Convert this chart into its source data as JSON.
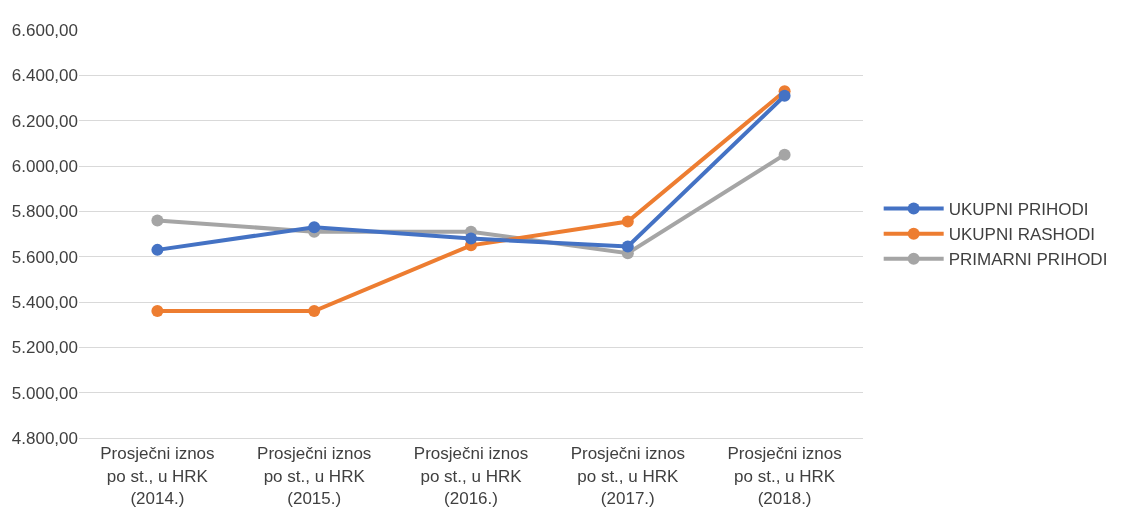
{
  "chart_data": {
    "type": "line",
    "categories": [
      "Prosječni iznos po st., u HRK (2014.)",
      "Prosječni iznos po st., u HRK (2015.)",
      "Prosječni iznos po st., u HRK (2016.)",
      "Prosječni iznos po st., u HRK (2017.)",
      "Prosječni iznos po st., u HRK (2018.)"
    ],
    "series": [
      {
        "name": "UKUPNI PRIHODI",
        "color": "#4472c4",
        "values": [
          5630,
          5730,
          5680,
          5645,
          6310
        ]
      },
      {
        "name": "UKUPNI RASHODI",
        "color": "#ed7d31",
        "values": [
          5360,
          5360,
          5650,
          5755,
          6330
        ]
      },
      {
        "name": "PRIMARNI PRIHODI",
        "color": "#a5a5a5",
        "values": [
          5760,
          5710,
          5710,
          5615,
          6050
        ]
      }
    ],
    "ylim": [
      4800,
      6600
    ],
    "yticks": [
      {
        "value": 4800,
        "label": "4.800,00"
      },
      {
        "value": 5000,
        "label": "5.000,00"
      },
      {
        "value": 5200,
        "label": "5.200,00"
      },
      {
        "value": 5400,
        "label": "5.400,00"
      },
      {
        "value": 5600,
        "label": "5.600,00"
      },
      {
        "value": 5800,
        "label": "5.800,00"
      },
      {
        "value": 6000,
        "label": "6.000,00"
      },
      {
        "value": 6200,
        "label": "6.200,00"
      },
      {
        "value": 6400,
        "label": "6.400,00"
      },
      {
        "value": 6600,
        "label": "6.600,00"
      }
    ],
    "grid": "y",
    "legend": "right",
    "marker": "circle",
    "line_style": "solid"
  }
}
